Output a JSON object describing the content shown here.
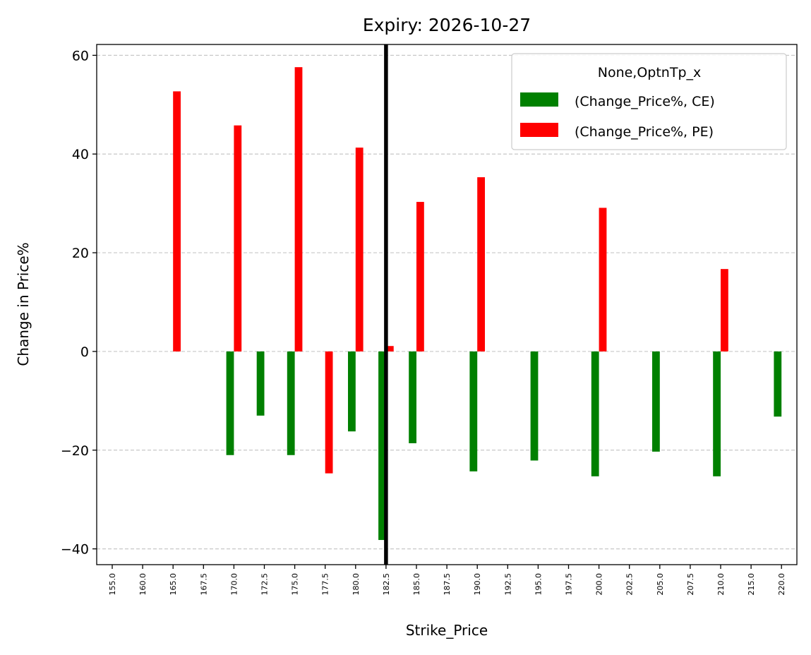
{
  "chart_data": {
    "type": "bar",
    "title": "Expiry: 2026-10-27",
    "xlabel": "Strike_Price",
    "ylabel": "Change in Price%",
    "categories": [
      "155.0",
      "160.0",
      "165.0",
      "167.5",
      "170.0",
      "172.5",
      "175.0",
      "177.5",
      "180.0",
      "182.5",
      "185.0",
      "187.5",
      "190.0",
      "192.5",
      "195.0",
      "197.5",
      "200.0",
      "202.5",
      "205.0",
      "207.5",
      "210.0",
      "215.0",
      "220.0"
    ],
    "series": [
      {
        "name": "(Change_Price%, CE)",
        "color": "#008000",
        "values": [
          null,
          null,
          null,
          null,
          -21.0,
          -13.0,
          -21.0,
          null,
          -16.2,
          -38.2,
          -18.6,
          null,
          -24.3,
          null,
          -22.1,
          null,
          -25.3,
          null,
          -20.3,
          null,
          -25.3,
          null,
          -13.2
        ]
      },
      {
        "name": "(Change_Price%, PE)",
        "color": "#ff0000",
        "values": [
          null,
          null,
          52.7,
          null,
          45.8,
          null,
          57.6,
          -24.7,
          41.3,
          1.1,
          30.3,
          null,
          35.3,
          null,
          null,
          null,
          29.1,
          null,
          null,
          null,
          16.7,
          null,
          null
        ]
      }
    ],
    "ylim": [
      -43.2,
      62.2
    ],
    "yticks": [
      60,
      40,
      20,
      0,
      -20,
      -40
    ],
    "ytick_labels": [
      "60",
      "40",
      "20",
      "0",
      "−20",
      "−40"
    ],
    "grid": "y-dashed",
    "legend": {
      "title": "None,OptnTp_x",
      "placement": "top-right"
    },
    "reference_line": {
      "category": "182.5",
      "color": "#000000"
    }
  }
}
